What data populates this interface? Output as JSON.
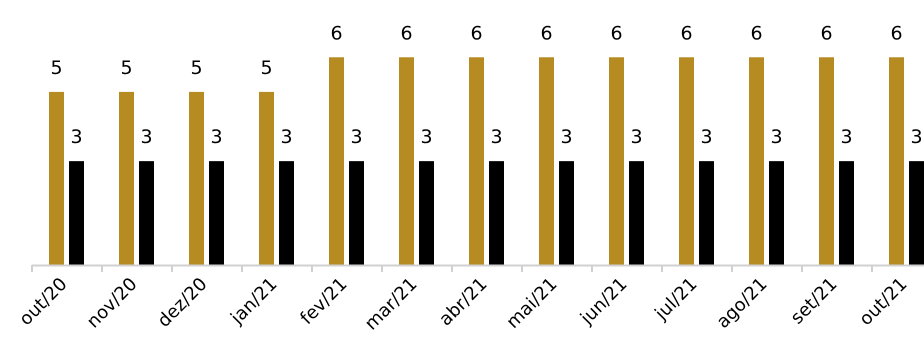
{
  "chart_data": {
    "type": "bar",
    "categories": [
      "out/20",
      "nov/20",
      "dez/20",
      "jan/21",
      "fev/21",
      "mar/21",
      "abr/21",
      "mai/21",
      "jun/21",
      "jul/21",
      "ago/21",
      "set/21",
      "out/21"
    ],
    "series": [
      {
        "color": "#B68B22",
        "values": [
          5,
          5,
          5,
          5,
          6,
          6,
          6,
          6,
          6,
          6,
          6,
          6,
          6
        ]
      },
      {
        "color": "#000000",
        "values": [
          3,
          3,
          3,
          3,
          3,
          3,
          3,
          3,
          3,
          3,
          3,
          3,
          3
        ]
      }
    ],
    "ylim": [
      0,
      7.25
    ],
    "grid": false,
    "legend": "none",
    "data_labels": true,
    "axis_color": "#D0D0D0"
  }
}
